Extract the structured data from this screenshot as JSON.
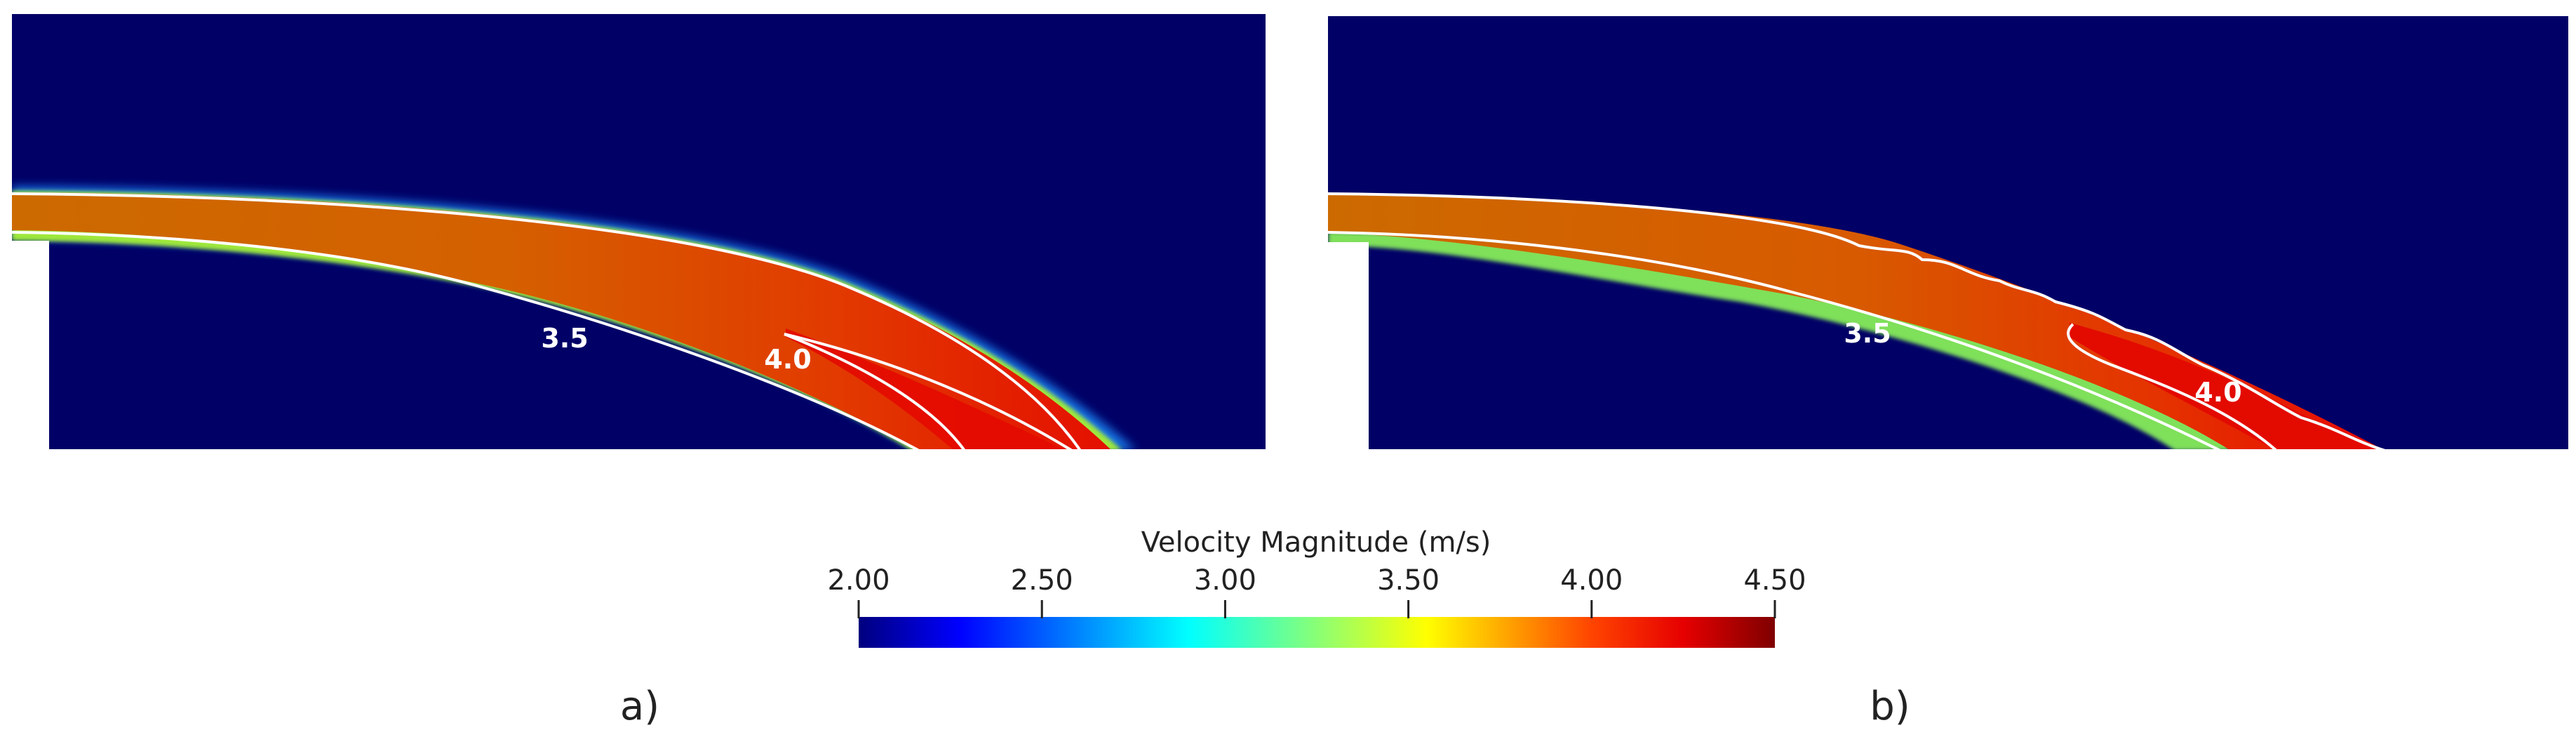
{
  "panels": [
    {
      "id": "a",
      "caption": "a)",
      "contours": [
        {
          "label": "3.5"
        },
        {
          "label": "4.0"
        }
      ]
    },
    {
      "id": "b",
      "caption": "b)",
      "contours": [
        {
          "label": "3.5"
        },
        {
          "label": "4.0"
        }
      ]
    }
  ],
  "colorbar": {
    "title": "Velocity Magnitude (m/s)",
    "ticks": [
      "2.00",
      "2.50",
      "3.00",
      "3.50",
      "4.00",
      "4.50"
    ],
    "min": 2.0,
    "max": 4.5
  },
  "colors": {
    "background_field": "#010066",
    "contour_line": "#ffffff"
  }
}
